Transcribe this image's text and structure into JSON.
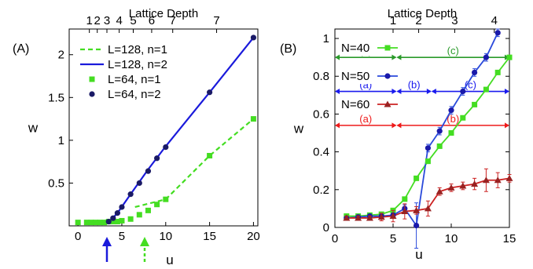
{
  "chart_data": [
    {
      "type": "line",
      "panel_label": "(A)",
      "xlabel": "u",
      "ylabel": "w",
      "top_axis_label": "Lattice Depth",
      "xlim": [
        -1,
        20.5
      ],
      "ylim": [
        0,
        2.3
      ],
      "grid": false,
      "legend_position": "top-left",
      "x_ticks": [
        "0",
        "5",
        "10",
        "15",
        "20"
      ],
      "y_ticks": [
        "0.5",
        "1",
        "1.5",
        "2"
      ],
      "top_ticks": [
        {
          "u": 1.3,
          "label": "1"
        },
        {
          "u": 2.2,
          "label": "2"
        },
        {
          "u": 3.3,
          "label": "3"
        },
        {
          "u": 4.7,
          "label": "4"
        },
        {
          "u": 6.3,
          "label": "5"
        },
        {
          "u": 8.4,
          "label": "6"
        },
        {
          "u": 10.8,
          "label": "7"
        },
        {
          "u": 15.8,
          "label": "7"
        }
      ],
      "arrows": [
        {
          "u": 3.3,
          "color": "#1a1adb",
          "style": "solid"
        },
        {
          "u": 7.6,
          "color": "#44dd22",
          "style": "dashed"
        }
      ],
      "series": [
        {
          "name": "L=128, n=1",
          "color": "#44dd22",
          "style": "dashed-line",
          "x": [
            6.5,
            10,
            15,
            20
          ],
          "y": [
            0.22,
            0.31,
            0.82,
            1.25
          ]
        },
        {
          "name": "L=128, n=2",
          "color": "#1a1adb",
          "style": "solid-line",
          "x": [
            3.6,
            4.5,
            6,
            8,
            10,
            15,
            20
          ],
          "y": [
            0.05,
            0.15,
            0.37,
            0.66,
            0.93,
            1.56,
            2.2
          ]
        },
        {
          "name": "L=64, n=1",
          "color": "#44dd22",
          "style": "square-markers",
          "x": [
            0,
            1,
            1.5,
            2,
            2.5,
            3,
            3.5,
            4,
            4.5,
            5,
            6,
            7,
            8,
            9,
            10,
            15,
            20
          ],
          "y": [
            0.04,
            0.04,
            0.04,
            0.04,
            0.04,
            0.04,
            0.05,
            0.05,
            0.05,
            0.06,
            0.08,
            0.13,
            0.18,
            0.25,
            0.31,
            0.82,
            1.25
          ]
        },
        {
          "name": "L=64, n=2",
          "color": "#1a1a66",
          "style": "circle-markers",
          "x": [
            3.5,
            4,
            4.5,
            5,
            6,
            7,
            8,
            9,
            10,
            15,
            20
          ],
          "y": [
            0.05,
            0.09,
            0.15,
            0.22,
            0.37,
            0.5,
            0.64,
            0.79,
            0.92,
            1.56,
            2.2
          ]
        }
      ]
    },
    {
      "type": "line",
      "panel_label": "(B)",
      "xlabel": "u",
      "ylabel": "w",
      "top_axis_label": "Lattice Depth",
      "xlim": [
        0,
        15
      ],
      "ylim": [
        0,
        1.05
      ],
      "grid": false,
      "legend_position": "left",
      "x_ticks": [
        "0",
        "5",
        "10",
        "15"
      ],
      "y_ticks": [
        "0",
        "0.2",
        "0.4",
        "0.6",
        "0.8",
        "1"
      ],
      "top_ticks": [
        {
          "u": 5.0,
          "label": "1"
        },
        {
          "u": 7.2,
          "label": "2"
        },
        {
          "u": 10.3,
          "label": "3"
        },
        {
          "u": 13.7,
          "label": "4"
        }
      ],
      "regions": [
        {
          "color": "#2a9a2a",
          "y": 0.9,
          "segments": [
            {
              "from": 0,
              "to": 5.3,
              "label": "(a)"
            },
            {
              "from": 5.3,
              "to": 15,
              "label": "(c)"
            }
          ]
        },
        {
          "color": "#1a1aee",
          "y": 0.72,
          "segments": [
            {
              "from": 0,
              "to": 5.3,
              "label": "(a)"
            },
            {
              "from": 5.3,
              "to": 8.3,
              "label": "(b)"
            },
            {
              "from": 8.3,
              "to": 15,
              "label": "(c)"
            }
          ]
        },
        {
          "color": "#ee1a1a",
          "y": 0.54,
          "segments": [
            {
              "from": 0,
              "to": 5.3,
              "label": "(a)"
            },
            {
              "from": 5.3,
              "to": 15,
              "label": "(b)"
            }
          ]
        }
      ],
      "series": [
        {
          "name": "N=40",
          "color": "#44dd22",
          "marker": "square",
          "x": [
            1,
            2,
            3,
            4,
            5,
            6,
            7,
            8,
            9,
            10,
            11,
            12,
            13,
            14,
            15
          ],
          "y": [
            0.06,
            0.06,
            0.065,
            0.07,
            0.09,
            0.15,
            0.26,
            0.35,
            0.43,
            0.5,
            0.58,
            0.65,
            0.73,
            0.82,
            0.9
          ],
          "err": [
            0.01,
            0.01,
            0.01,
            0.01,
            0.01,
            0.01,
            0.01,
            0.01,
            0.01,
            0.01,
            0.01,
            0.01,
            0.01,
            0.01,
            0.01
          ]
        },
        {
          "name": "N=50",
          "color": "#1a1aaa",
          "marker": "circle",
          "x": [
            1,
            2,
            3,
            4,
            5,
            6,
            7,
            8,
            9,
            10,
            11,
            12,
            13,
            14
          ],
          "y": [
            0.05,
            0.055,
            0.06,
            0.06,
            0.065,
            0.1,
            0.01,
            0.42,
            0.51,
            0.62,
            0.72,
            0.82,
            0.9,
            1.03
          ],
          "err": [
            0.01,
            0.01,
            0.01,
            0.01,
            0.01,
            0.02,
            0.12,
            0.02,
            0.02,
            0.02,
            0.02,
            0.02,
            0.02,
            0.02
          ]
        },
        {
          "name": "N=60",
          "color": "#992222",
          "marker": "triangle",
          "x": [
            1,
            2,
            3,
            4,
            5,
            6,
            7,
            8,
            9,
            10,
            11,
            12,
            13,
            14,
            15
          ],
          "y": [
            0.05,
            0.05,
            0.05,
            0.055,
            0.06,
            0.085,
            0.09,
            0.1,
            0.19,
            0.21,
            0.22,
            0.23,
            0.25,
            0.25,
            0.26
          ],
          "err": [
            0.01,
            0.01,
            0.01,
            0.02,
            0.03,
            0.04,
            0.02,
            0.04,
            0.02,
            0.02,
            0.02,
            0.03,
            0.06,
            0.04,
            0.02
          ]
        }
      ]
    }
  ]
}
